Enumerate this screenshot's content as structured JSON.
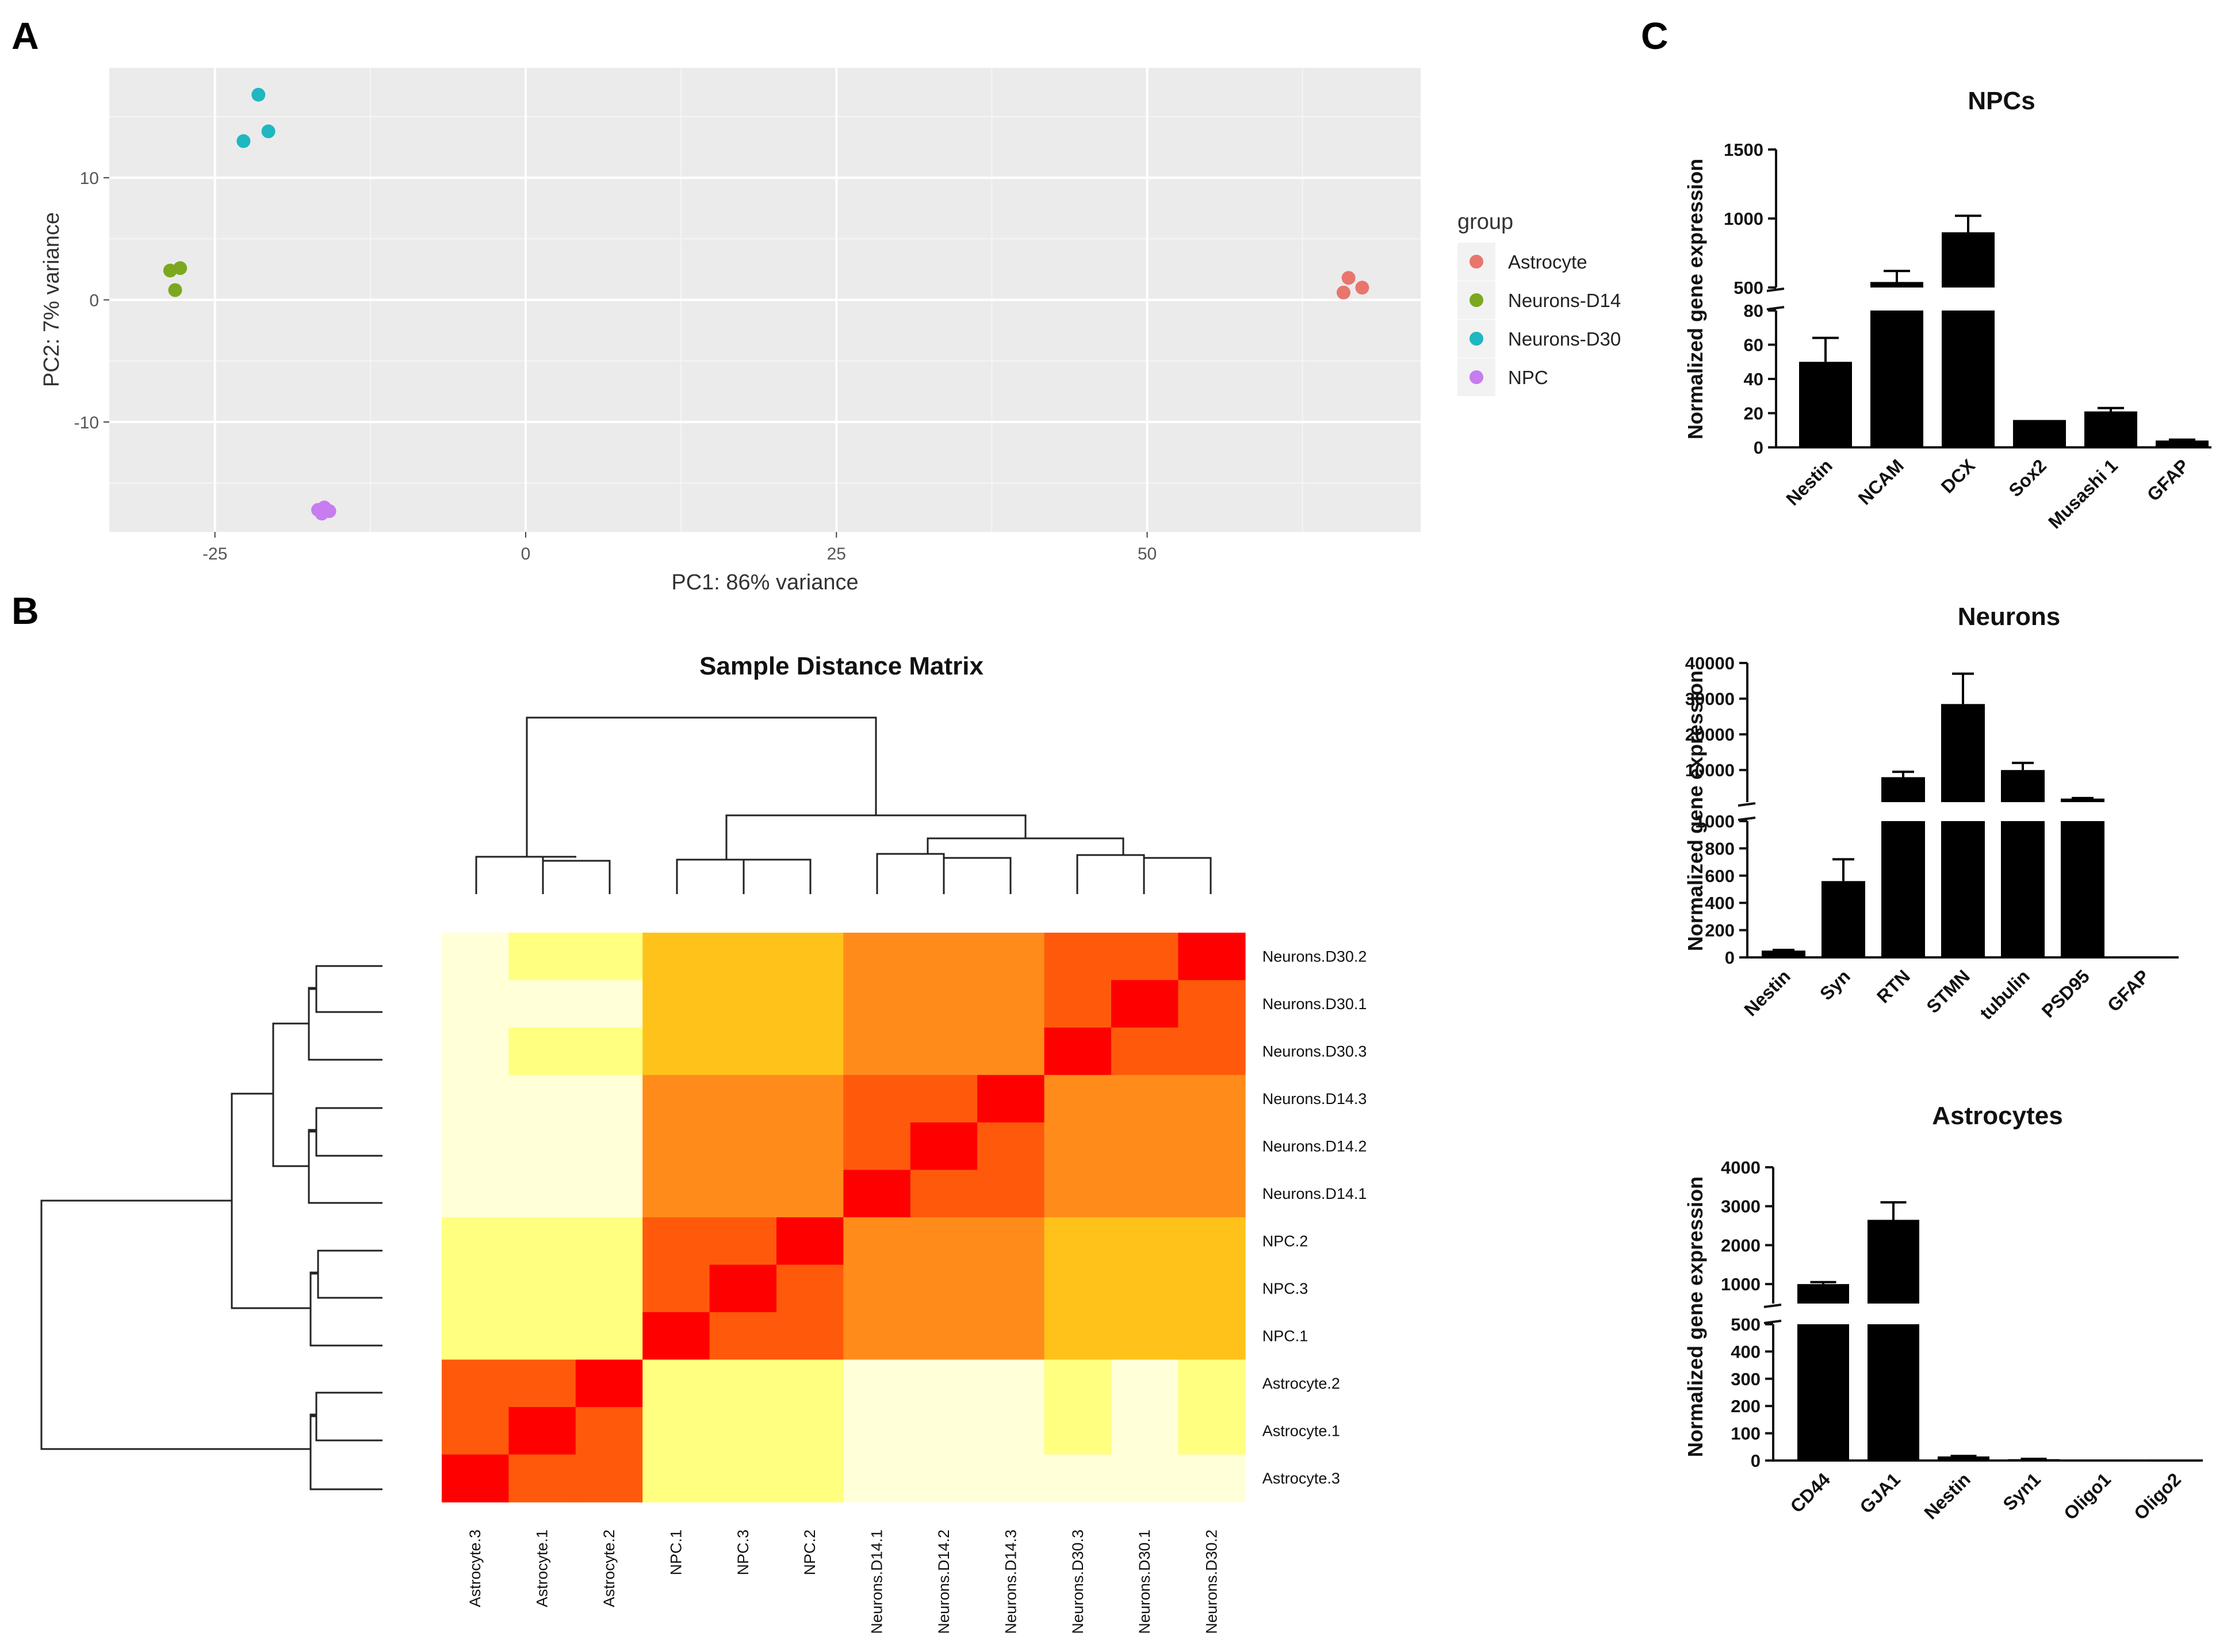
{
  "panels": {
    "a": "A",
    "b": "B",
    "c": "C"
  },
  "chart_data": [
    {
      "type": "scatter",
      "panel": "A",
      "xlabel": "PC1: 86% variance",
      "ylabel": "PC2: 7% variance",
      "xlim": [
        -33.5,
        72
      ],
      "ylim": [
        -19,
        19
      ],
      "xticks": [
        -25,
        0,
        25,
        50
      ],
      "yticks": [
        -10,
        0,
        10
      ],
      "grid": true,
      "legend_title": "group",
      "legend_position": "right",
      "series": [
        {
          "name": "Astrocyte",
          "color": "#e8766d",
          "points": [
            [
              66.2,
              1.8
            ],
            [
              67.3,
              1.0
            ],
            [
              65.8,
              0.6
            ]
          ]
        },
        {
          "name": "Neurons-D14",
          "color": "#7ca81f",
          "points": [
            [
              -28.6,
              2.4
            ],
            [
              -27.8,
              2.6
            ],
            [
              -28.2,
              0.8
            ]
          ]
        },
        {
          "name": "Neurons-D30",
          "color": "#1fb7c0",
          "points": [
            [
              -21.5,
              16.8
            ],
            [
              -22.7,
              13.0
            ],
            [
              -20.7,
              13.8
            ]
          ]
        },
        {
          "name": "NPC",
          "color": "#c77cf0",
          "points": [
            [
              -16.7,
              -17.2
            ],
            [
              -16.2,
              -17.0
            ],
            [
              -15.8,
              -17.3
            ],
            [
              -16.4,
              -17.5
            ]
          ]
        }
      ]
    },
    {
      "type": "heatmap",
      "panel": "B",
      "title": "Sample Distance Matrix",
      "row_labels": [
        "Neurons.D30.2",
        "Neurons.D30.1",
        "Neurons.D30.3",
        "Neurons.D14.3",
        "Neurons.D14.2",
        "Neurons.D14.1",
        "NPC.2",
        "NPC.3",
        "NPC.1",
        "Astrocyte.2",
        "Astrocyte.1",
        "Astrocyte.3"
      ],
      "col_labels": [
        "Astrocyte.3",
        "Astrocyte.1",
        "Astrocyte.2",
        "NPC.1",
        "NPC.3",
        "NPC.2",
        "Neurons.D14.1",
        "Neurons.D14.2",
        "Neurons.D14.3",
        "Neurons.D30.3",
        "Neurons.D30.1",
        "Neurons.D30.2"
      ],
      "colormap": [
        "#ff0000",
        "#ff5a0c",
        "#ff8c1a",
        "#ffc21a",
        "#ffff80",
        "#ffffd8"
      ],
      "values": [
        [
          5,
          4,
          4,
          3,
          3,
          3,
          2,
          2,
          2,
          1,
          1,
          0
        ],
        [
          5,
          5,
          5,
          3,
          3,
          3,
          2,
          2,
          2,
          1,
          0,
          1
        ],
        [
          5,
          4,
          4,
          3,
          3,
          3,
          2,
          2,
          2,
          0,
          1,
          1
        ],
        [
          5,
          5,
          5,
          2,
          2,
          2,
          1,
          1,
          0,
          2,
          2,
          2
        ],
        [
          5,
          5,
          5,
          2,
          2,
          2,
          1,
          0,
          1,
          2,
          2,
          2
        ],
        [
          5,
          5,
          5,
          2,
          2,
          2,
          0,
          1,
          1,
          2,
          2,
          2
        ],
        [
          4,
          4,
          4,
          1,
          1,
          0,
          2,
          2,
          2,
          3,
          3,
          3
        ],
        [
          4,
          4,
          4,
          1,
          0,
          1,
          2,
          2,
          2,
          3,
          3,
          3
        ],
        [
          4,
          4,
          4,
          0,
          1,
          1,
          2,
          2,
          2,
          3,
          3,
          3
        ],
        [
          1,
          1,
          0,
          4,
          4,
          4,
          5,
          5,
          5,
          4,
          5,
          4
        ],
        [
          1,
          0,
          1,
          4,
          4,
          4,
          5,
          5,
          5,
          4,
          5,
          4
        ],
        [
          0,
          1,
          1,
          4,
          4,
          4,
          5,
          5,
          5,
          5,
          5,
          5
        ]
      ]
    },
    {
      "type": "bar",
      "panel": "C",
      "title": "NPCs",
      "ylabel": "Normalized gene expression",
      "categories": [
        "Nestin",
        "NCAM",
        "DCX",
        "Sox2",
        "Musashi 1",
        "GFAP"
      ],
      "values": [
        50,
        540,
        900,
        16,
        21,
        4
      ],
      "errors": [
        14,
        80,
        120,
        0,
        2,
        0.5
      ],
      "axis_break": {
        "lower_max": 80,
        "upper_min": 500,
        "upper_max": 1500
      },
      "yticks_lower": [
        0,
        20,
        40,
        60,
        80
      ],
      "yticks_upper": [
        500,
        1000,
        1500
      ]
    },
    {
      "type": "bar",
      "panel": "C",
      "title": "Neurons",
      "ylabel": "Normalized gene expression",
      "categories": [
        "Nestin",
        "Syn",
        "RTN",
        "STMN",
        "tubulin",
        "PSD95",
        "GFAP"
      ],
      "values": [
        50,
        560,
        8000,
        28500,
        10000,
        2000,
        3
      ],
      "errors": [
        5,
        160,
        1500,
        8500,
        2000,
        150,
        0
      ],
      "axis_break": {
        "lower_max": 1000,
        "upper_min": 1000,
        "upper_max": 40000
      },
      "yticks_lower": [
        0,
        200,
        400,
        600,
        800,
        1000
      ],
      "yticks_upper": [
        10000,
        20000,
        30000,
        40000
      ]
    },
    {
      "type": "bar",
      "panel": "C",
      "title": "Astrocytes",
      "ylabel": "Normalized gene expression",
      "categories": [
        "CD44",
        "GJA1",
        "Nestin",
        "Syn1",
        "Oligo1",
        "Oligo2"
      ],
      "values": [
        1000,
        2650,
        15,
        5,
        2,
        1
      ],
      "errors": [
        50,
        450,
        2,
        1,
        0,
        0
      ],
      "axis_break": {
        "lower_max": 500,
        "upper_min": 500,
        "upper_max": 4000
      },
      "yticks_lower": [
        0,
        100,
        200,
        300,
        400,
        500
      ],
      "yticks_upper": [
        1000,
        2000,
        3000,
        4000
      ]
    }
  ]
}
